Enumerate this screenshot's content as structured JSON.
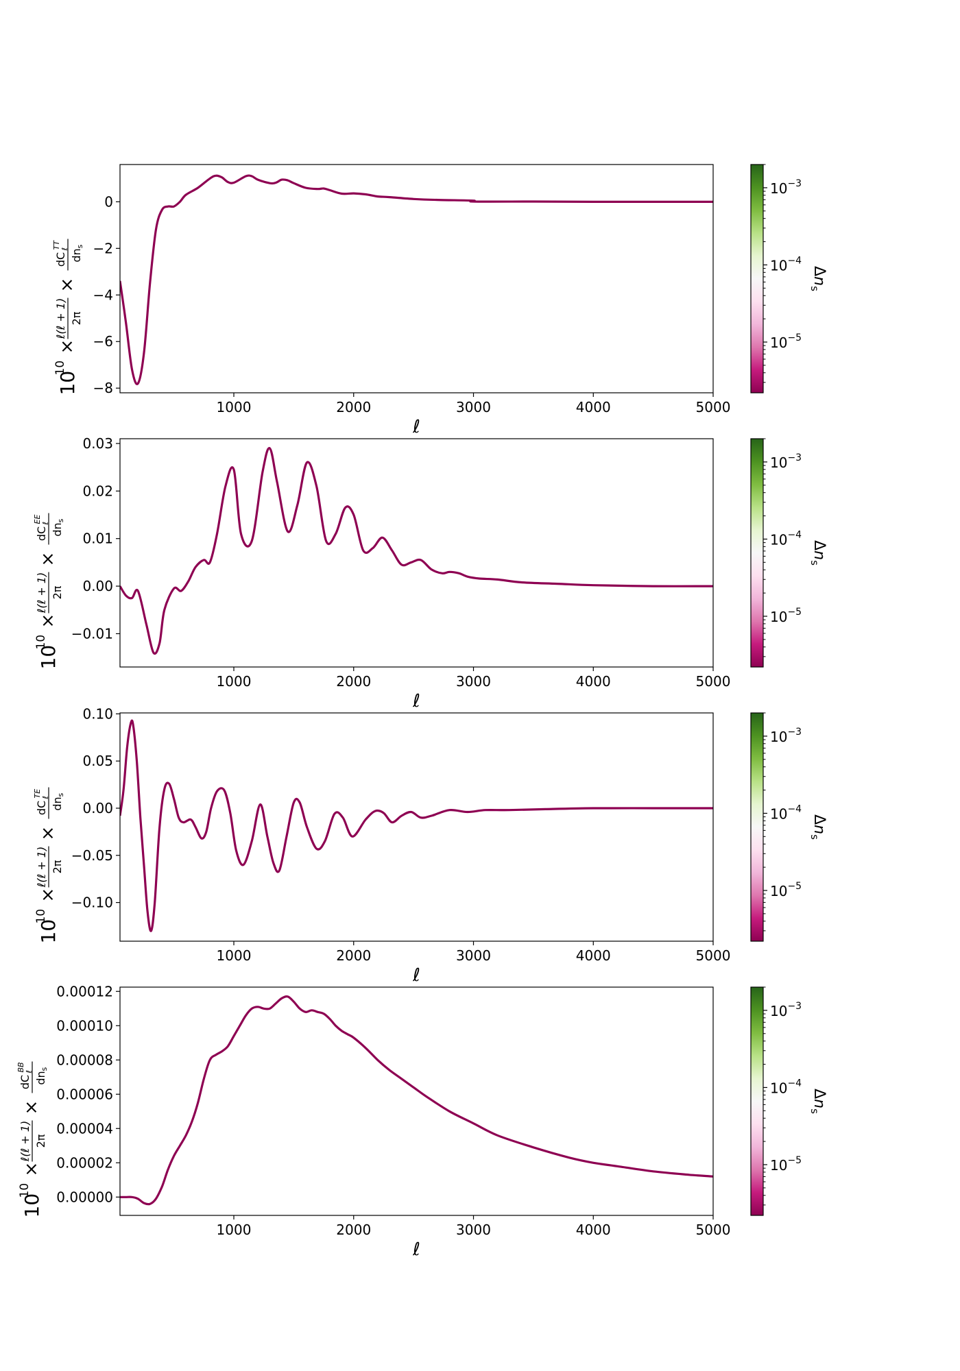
{
  "colors": {
    "line": "#8e0152",
    "colormap": [
      "#8e0152",
      "#c51b7d",
      "#de77ae",
      "#f1b6da",
      "#fde0ef",
      "#f7f7f7",
      "#e6f5d0",
      "#b8e186",
      "#7fbc41",
      "#4d9221",
      "#276419"
    ]
  },
  "colorbar": {
    "label": "Δn_s",
    "scale": "log",
    "range": [
      2.2e-06,
      0.002
    ],
    "ticks": [
      {
        "value": 0.001,
        "mantissa": "10",
        "exp": "−3"
      },
      {
        "value": 0.0001,
        "mantissa": "10",
        "exp": "−4"
      },
      {
        "value": 1e-05,
        "mantissa": "10",
        "exp": "−5"
      }
    ]
  },
  "chart_data": [
    {
      "type": "line",
      "spectrum": "TT",
      "xlabel": "ℓ",
      "ylabel": "10^10 × ℓ(ℓ+1)/2π × dC_ℓ^TT/dn_s",
      "xlim": [
        50,
        5000
      ],
      "ylim": [
        -8.2,
        1.6
      ],
      "xticks": [
        "1000",
        "2000",
        "3000",
        "4000",
        "5000"
      ],
      "yticks": [
        {
          "value": 0,
          "label": "0"
        },
        {
          "value": -2,
          "label": "−2"
        },
        {
          "value": -4,
          "label": "−4"
        },
        {
          "value": -6,
          "label": "−6"
        },
        {
          "value": -8,
          "label": "−8"
        }
      ],
      "x": [
        50,
        100,
        150,
        200,
        250,
        300,
        350,
        400,
        450,
        500,
        550,
        600,
        700,
        800,
        850,
        900,
        950,
        1000,
        1100,
        1150,
        1200,
        1300,
        1350,
        1400,
        1450,
        1500,
        1600,
        1700,
        1750,
        1800,
        1900,
        2000,
        2100,
        2200,
        2300,
        2500,
        2700,
        2999,
        3001,
        3500,
        4000,
        4500,
        5000
      ],
      "values": [
        -3.4,
        -5.2,
        -7.2,
        -7.8,
        -6.5,
        -3.5,
        -1.2,
        -0.35,
        -0.2,
        -0.2,
        0.0,
        0.3,
        0.6,
        1.0,
        1.12,
        1.05,
        0.85,
        0.82,
        1.1,
        1.1,
        0.95,
        0.8,
        0.82,
        0.95,
        0.92,
        0.8,
        0.6,
        0.55,
        0.57,
        0.5,
        0.35,
        0.36,
        0.32,
        0.23,
        0.2,
        0.12,
        0.08,
        0.05,
        0.01,
        0.01,
        0.0,
        0.0,
        0.0
      ]
    },
    {
      "type": "line",
      "spectrum": "EE",
      "xlabel": "ℓ",
      "ylabel": "10^10 × ℓ(ℓ+1)/2π × dC_ℓ^EE/dn_s",
      "xlim": [
        50,
        5000
      ],
      "ylim": [
        -0.017,
        0.031
      ],
      "xticks": [
        "1000",
        "2000",
        "3000",
        "4000",
        "5000"
      ],
      "yticks": [
        {
          "value": 0.03,
          "label": "0.03"
        },
        {
          "value": 0.02,
          "label": "0.02"
        },
        {
          "value": 0.01,
          "label": "0.01"
        },
        {
          "value": 0.0,
          "label": "0.00"
        },
        {
          "value": -0.01,
          "label": "−0.01"
        }
      ],
      "x": [
        50,
        100,
        150,
        200,
        270,
        330,
        380,
        420,
        500,
        560,
        620,
        680,
        750,
        800,
        860,
        930,
        1000,
        1060,
        1150,
        1240,
        1300,
        1360,
        1450,
        1530,
        1610,
        1690,
        1770,
        1850,
        1930,
        2000,
        2080,
        2160,
        2240,
        2320,
        2400,
        2480,
        2560,
        2650,
        2740,
        2800,
        2880,
        2950,
        3050,
        3200,
        3400,
        3700,
        4000,
        4500,
        5000
      ],
      "values": [
        0.0,
        -0.002,
        -0.0025,
        -0.001,
        -0.008,
        -0.014,
        -0.012,
        -0.005,
        -0.0005,
        -0.001,
        0.001,
        0.004,
        0.0055,
        0.005,
        0.011,
        0.021,
        0.0245,
        0.011,
        0.0095,
        0.024,
        0.029,
        0.022,
        0.0115,
        0.017,
        0.026,
        0.021,
        0.0095,
        0.011,
        0.0165,
        0.015,
        0.0075,
        0.008,
        0.0102,
        0.0075,
        0.0045,
        0.005,
        0.0055,
        0.0035,
        0.0027,
        0.003,
        0.0027,
        0.002,
        0.0016,
        0.0014,
        0.0008,
        0.0005,
        0.0002,
        0.0,
        0.0
      ]
    },
    {
      "type": "line",
      "spectrum": "TE",
      "xlabel": "ℓ",
      "ylabel": "10^10 × ℓ(ℓ+1)/2π × dC_ℓ^TE/dn_s",
      "xlim": [
        50,
        5000
      ],
      "ylim": [
        -0.141,
        0.101
      ],
      "xticks": [
        "1000",
        "2000",
        "3000",
        "4000",
        "5000"
      ],
      "yticks": [
        {
          "value": 0.1,
          "label": "0.10"
        },
        {
          "value": 0.05,
          "label": "0.05"
        },
        {
          "value": 0.0,
          "label": "0.00"
        },
        {
          "value": -0.05,
          "label": "−0.05"
        },
        {
          "value": -0.1,
          "label": "−0.10"
        }
      ],
      "x": [
        50,
        80,
        110,
        140,
        160,
        190,
        220,
        250,
        280,
        310,
        340,
        380,
        420,
        460,
        500,
        540,
        580,
        640,
        680,
        730,
        770,
        810,
        860,
        920,
        970,
        1020,
        1080,
        1150,
        1220,
        1280,
        1330,
        1380,
        1440,
        1500,
        1550,
        1610,
        1690,
        1760,
        1840,
        1910,
        1990,
        2100,
        2180,
        2250,
        2320,
        2400,
        2480,
        2560,
        2650,
        2800,
        2950,
        3100,
        3300,
        3600,
        4000,
        4500,
        5000
      ],
      "values": [
        -0.008,
        0.02,
        0.065,
        0.09,
        0.088,
        0.05,
        -0.01,
        -0.06,
        -0.11,
        -0.13,
        -0.1,
        -0.02,
        0.02,
        0.026,
        0.01,
        -0.01,
        -0.015,
        -0.012,
        -0.02,
        -0.032,
        -0.025,
        0.0,
        0.018,
        0.019,
        -0.005,
        -0.045,
        -0.06,
        -0.035,
        0.004,
        -0.03,
        -0.058,
        -0.066,
        -0.03,
        0.006,
        0.006,
        -0.02,
        -0.043,
        -0.035,
        -0.006,
        -0.01,
        -0.03,
        -0.012,
        -0.003,
        -0.005,
        -0.015,
        -0.008,
        -0.004,
        -0.01,
        -0.008,
        -0.002,
        -0.004,
        -0.002,
        -0.002,
        -0.001,
        0.0,
        0.0,
        0.0
      ]
    },
    {
      "type": "line",
      "spectrum": "BB",
      "xlabel": "ℓ",
      "ylabel": "10^10 × ℓ(ℓ+1)/2π × dC_ℓ^BB/dn_s",
      "xlim": [
        50,
        5000
      ],
      "ylim": [
        -1.07e-05,
        0.0001225
      ],
      "xticks": [
        "1000",
        "2000",
        "3000",
        "4000",
        "5000"
      ],
      "yticks": [
        {
          "value": 0.00012,
          "label": "0.00012"
        },
        {
          "value": 0.0001,
          "label": "0.00010"
        },
        {
          "value": 8e-05,
          "label": "0.00008"
        },
        {
          "value": 6e-05,
          "label": "0.00006"
        },
        {
          "value": 4e-05,
          "label": "0.00004"
        },
        {
          "value": 2e-05,
          "label": "0.00002"
        },
        {
          "value": 0.0,
          "label": "0.00000"
        }
      ],
      "x": [
        50,
        100,
        150,
        200,
        250,
        300,
        350,
        400,
        450,
        500,
        550,
        600,
        650,
        700,
        750,
        800,
        850,
        900,
        950,
        1000,
        1050,
        1100,
        1150,
        1200,
        1250,
        1300,
        1350,
        1400,
        1450,
        1500,
        1550,
        1600,
        1650,
        1700,
        1750,
        1800,
        1850,
        1900,
        1950,
        2000,
        2100,
        2200,
        2300,
        2400,
        2500,
        2600,
        2800,
        3000,
        3200,
        3500,
        3800,
        4000,
        4200,
        4500,
        4800,
        5000
      ],
      "values": [
        0.0,
        0.0,
        0.0,
        -1e-06,
        -3.5e-06,
        -4e-06,
        -1e-06,
        6e-06,
        1.6e-05,
        2.4e-05,
        3e-05,
        3.6e-05,
        4.4e-05,
        5.5e-05,
        6.9e-05,
        8e-05,
        8.3e-05,
        8.5e-05,
        8.8e-05,
        9.4e-05,
        0.0001,
        0.000106,
        0.00011,
        0.000111,
        0.00011,
        0.00011,
        0.000113,
        0.000116,
        0.000117,
        0.000114,
        0.00011,
        0.000108,
        0.000109,
        0.000108,
        0.000107,
        0.000104,
        0.0001,
        9.7e-05,
        9.5e-05,
        9.3e-05,
        8.7e-05,
        8e-05,
        7.4e-05,
        6.9e-05,
        6.4e-05,
        5.9e-05,
        5e-05,
        4.3e-05,
        3.6e-05,
        2.9e-05,
        2.3e-05,
        2e-05,
        1.8e-05,
        1.5e-05,
        1.3e-05,
        1.2e-05
      ]
    }
  ]
}
